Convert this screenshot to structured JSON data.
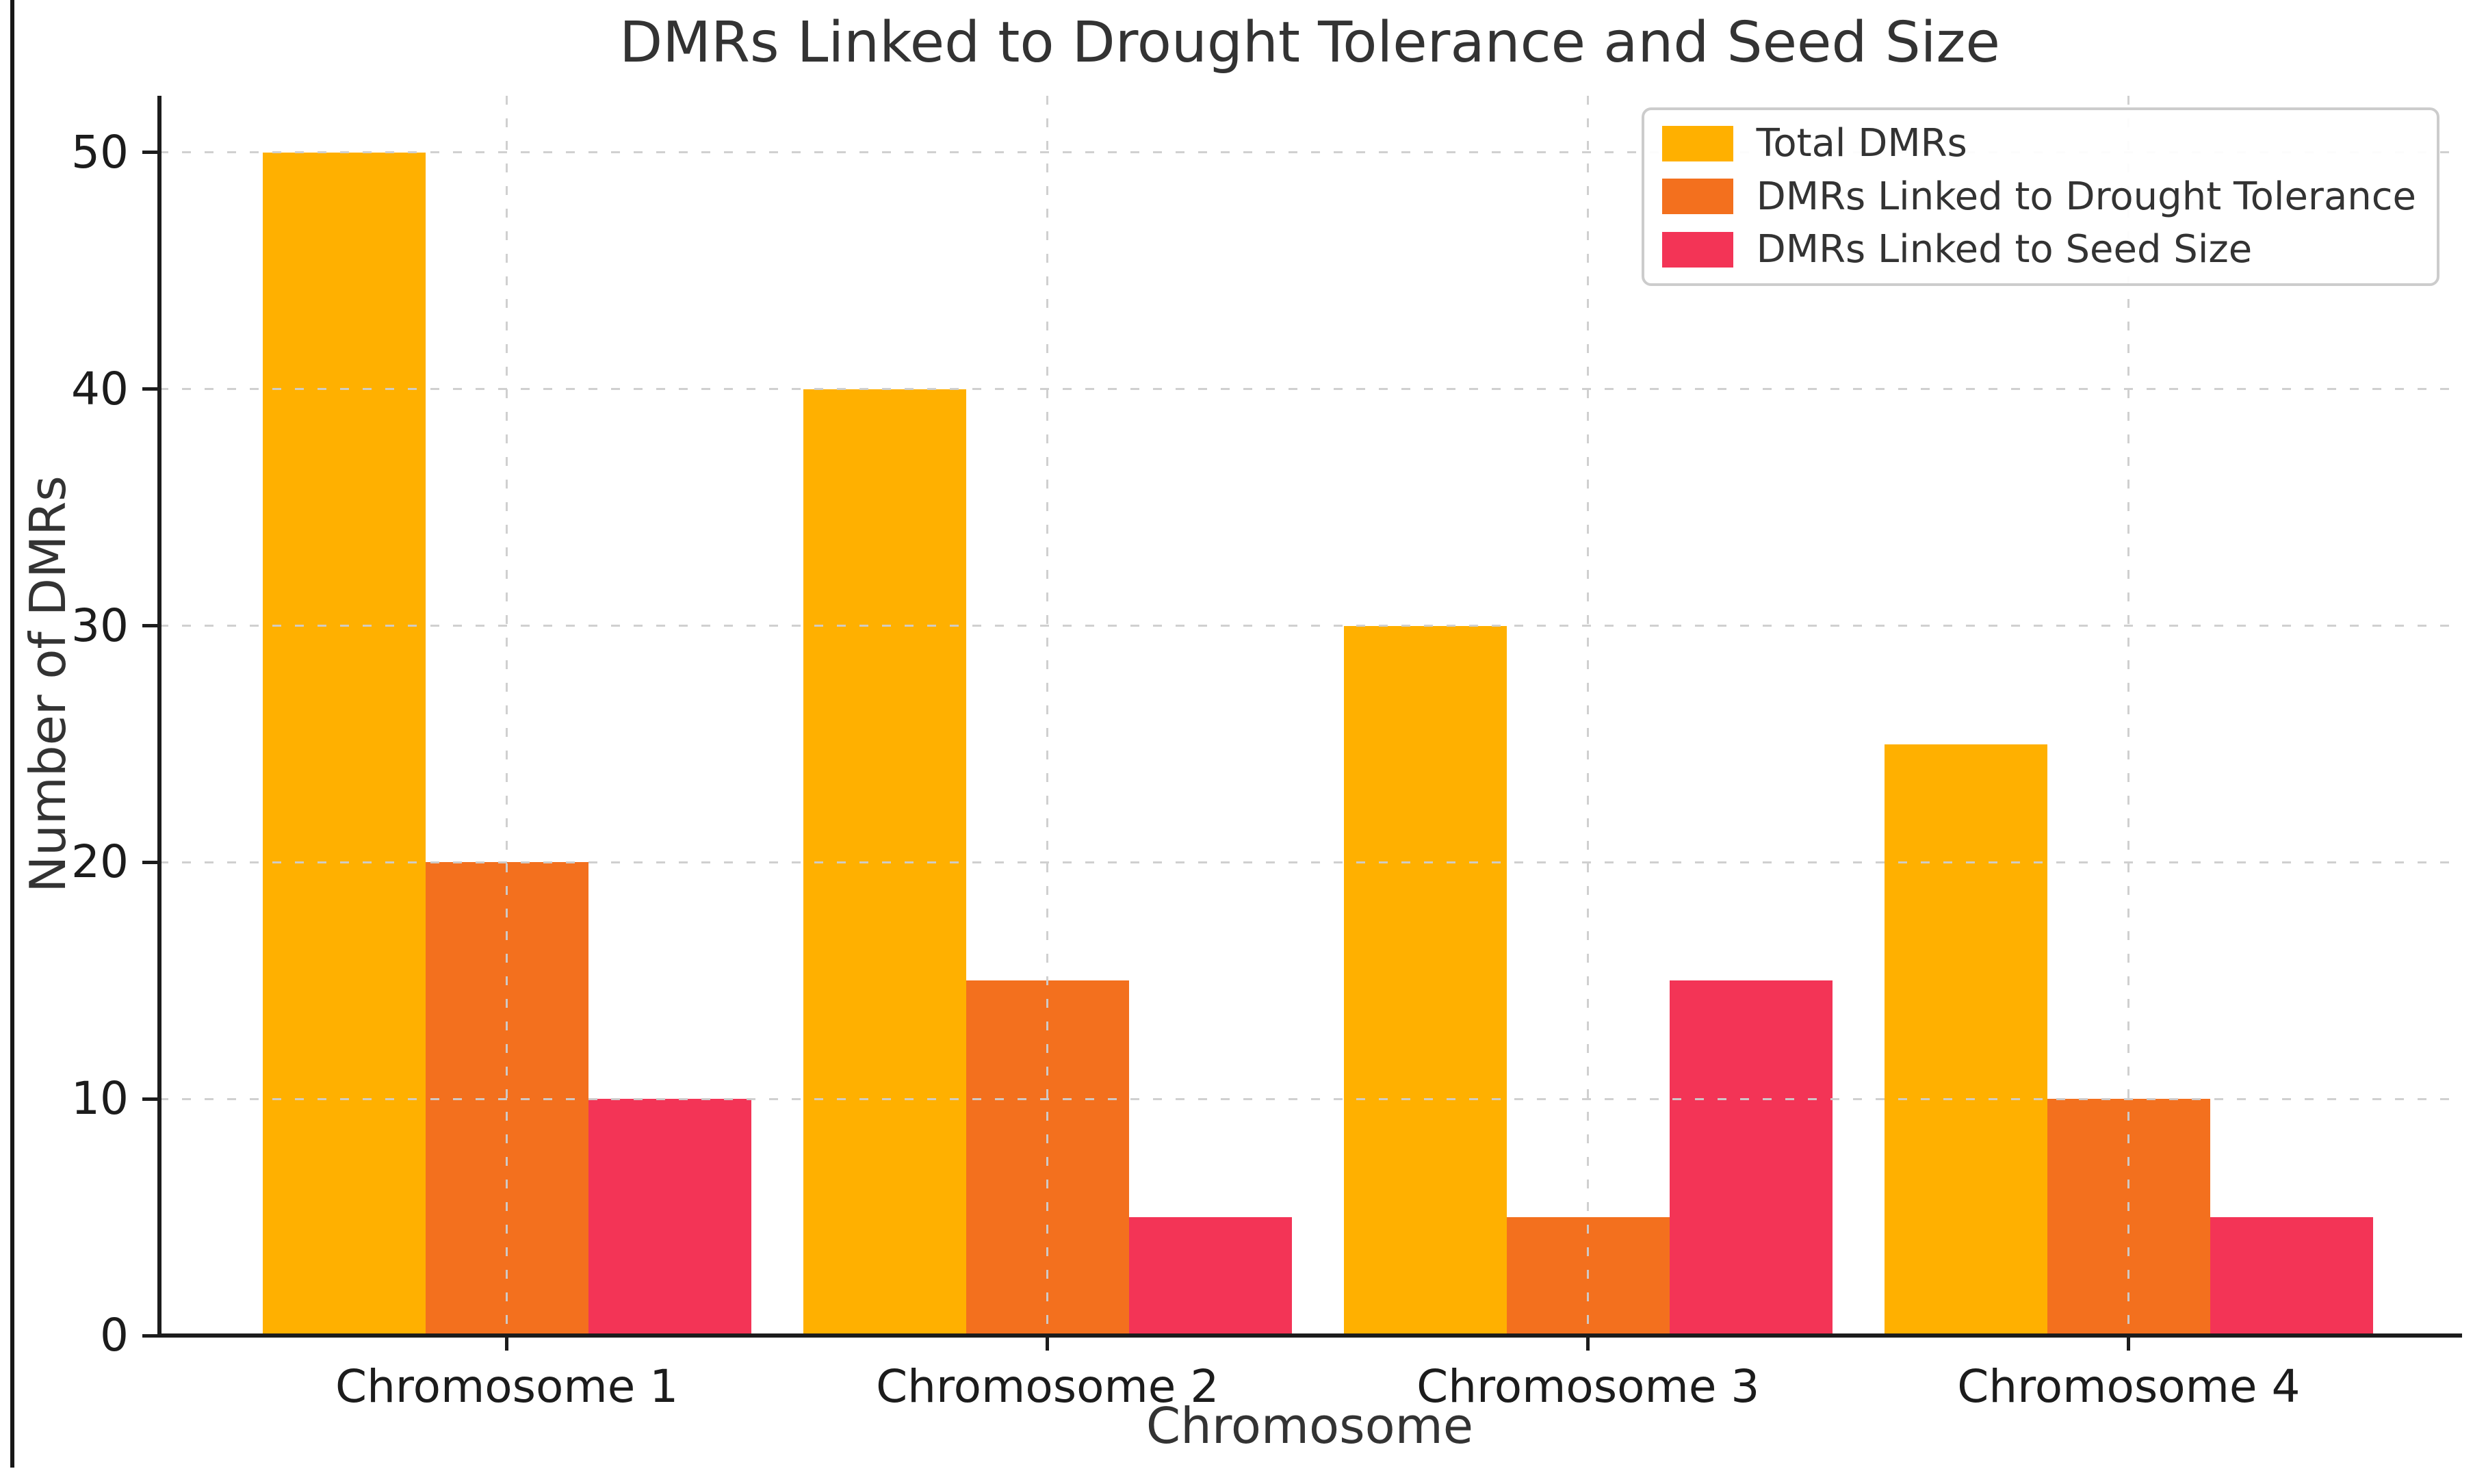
{
  "frame": {
    "left_border_color": "#181818"
  },
  "chart_data": {
    "type": "bar",
    "title": "DMRs Linked to Drought Tolerance and Seed Size",
    "xlabel": "Chromosome",
    "ylabel": "Number of DMRs",
    "categories": [
      "Chromosome 1",
      "Chromosome 2",
      "Chromosome 3",
      "Chromosome 4"
    ],
    "series": [
      {
        "name": "Total DMRs",
        "color": "#FFB000",
        "values": [
          50,
          40,
          30,
          25
        ]
      },
      {
        "name": "DMRs Linked to Drought Tolerance",
        "color": "#F3701E",
        "values": [
          20,
          15,
          5,
          10
        ]
      },
      {
        "name": "DMRs Linked to Seed Size",
        "color": "#F33456",
        "values": [
          10,
          5,
          15,
          5
        ]
      }
    ],
    "yticks": [
      0,
      10,
      20,
      30,
      40,
      50
    ],
    "ylim": [
      0,
      52.4
    ],
    "grid": "dashed-both-axes",
    "grid_color": "#cfcfcf",
    "axis_color": "#1c1c1c",
    "text_color": "#333333",
    "legend_position": "upper right"
  }
}
